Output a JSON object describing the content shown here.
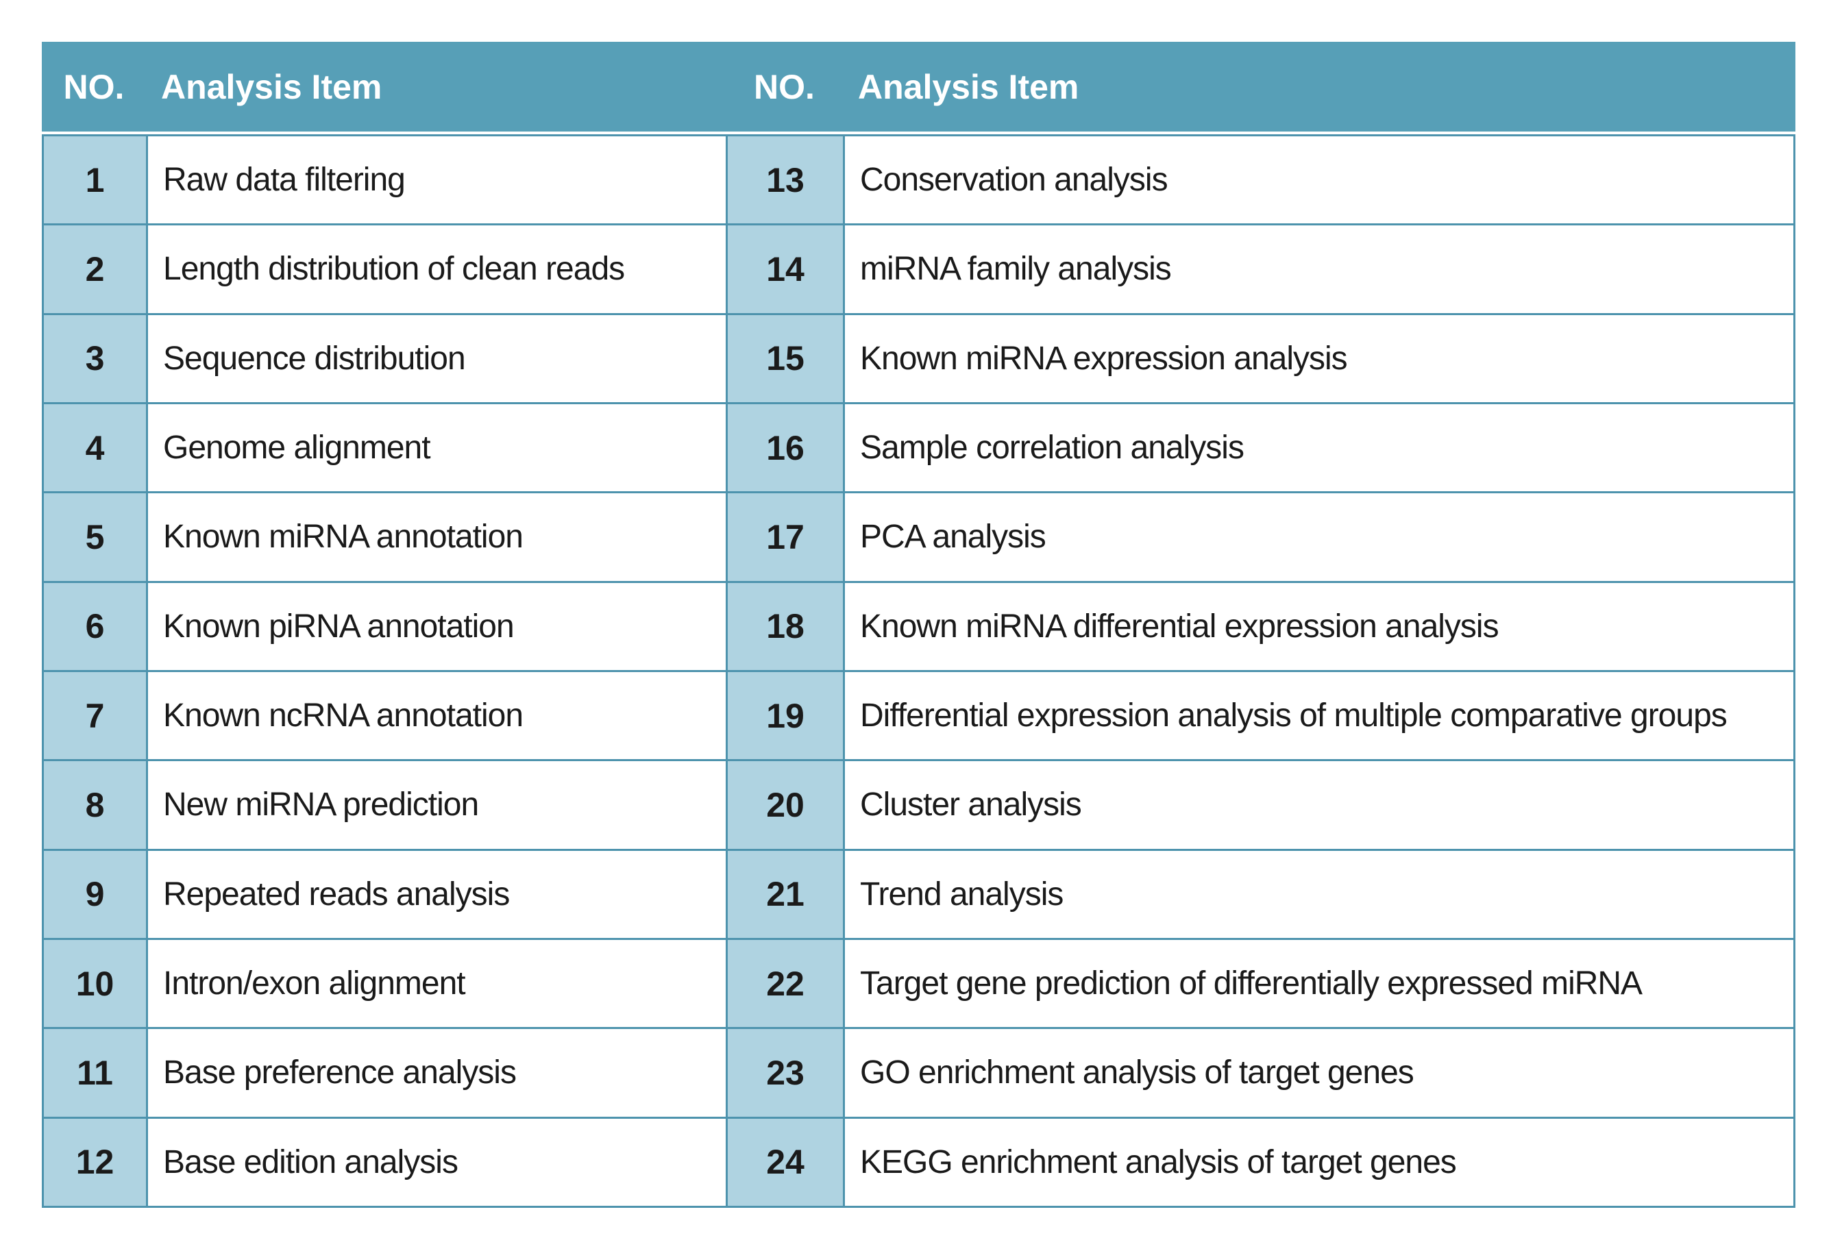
{
  "table": {
    "headers": [
      "NO.",
      "Analysis Item",
      "NO.",
      "Analysis Item"
    ],
    "colors": {
      "header_bg": "#579FB7",
      "border": "#4D93AD",
      "number_cell_bg": "#AFD3E1",
      "cell_bg": "#FFFFFF",
      "header_text": "#FFFFFF",
      "body_text": "#1A1A1A"
    },
    "rows": [
      {
        "no_left": "1",
        "item_left": "Raw data filtering",
        "no_right": "13",
        "item_right": "Conservation analysis"
      },
      {
        "no_left": "2",
        "item_left": "Length distribution of clean reads",
        "no_right": "14",
        "item_right": "miRNA family analysis"
      },
      {
        "no_left": "3",
        "item_left": "Sequence distribution",
        "no_right": "15",
        "item_right": "Known miRNA expression analysis"
      },
      {
        "no_left": "4",
        "item_left": "Genome alignment",
        "no_right": "16",
        "item_right": "Sample correlation analysis"
      },
      {
        "no_left": "5",
        "item_left": "Known miRNA annotation",
        "no_right": "17",
        "item_right": "PCA analysis"
      },
      {
        "no_left": "6",
        "item_left": "Known piRNA annotation",
        "no_right": "18",
        "item_right": "Known miRNA differential expression analysis"
      },
      {
        "no_left": "7",
        "item_left": "Known ncRNA annotation",
        "no_right": "19",
        "item_right": "Differential expression analysis of multiple comparative groups"
      },
      {
        "no_left": "8",
        "item_left": "New miRNA prediction",
        "no_right": "20",
        "item_right": "Cluster analysis"
      },
      {
        "no_left": "9",
        "item_left": "Repeated reads analysis",
        "no_right": "21",
        "item_right": "Trend analysis"
      },
      {
        "no_left": "10",
        "item_left": "Intron/exon alignment",
        "no_right": "22",
        "item_right": "Target gene prediction of differentially expressed miRNA"
      },
      {
        "no_left": "11",
        "item_left": "Base preference analysis",
        "no_right": "23",
        "item_right": "GO enrichment analysis of target genes"
      },
      {
        "no_left": "12",
        "item_left": "Base edition analysis",
        "no_right": "24",
        "item_right": "KEGG enrichment analysis of target genes"
      }
    ]
  }
}
